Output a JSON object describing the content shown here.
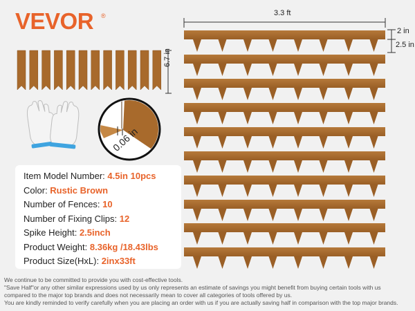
{
  "brand": {
    "name": "VEVOR",
    "reg": "®"
  },
  "colors": {
    "accent": "#e8632a",
    "wood": "#a86a2c",
    "wood_light": "#c58845",
    "background": "#f1f1f1"
  },
  "dimensions": {
    "length": "3.3 ft",
    "height": "2 in",
    "spike": "2.5 in",
    "clip_length": "6.7 in",
    "thickness": "0.06 in"
  },
  "specs": [
    {
      "label": "Item Model Number: ",
      "value": "4.5in 10pcs"
    },
    {
      "label": "Color: ",
      "value": "Rustic Brown"
    },
    {
      "label": "Number of Fences: ",
      "value": "10"
    },
    {
      "label": "Number of Fixing Clips: ",
      "value": "12"
    },
    {
      "label": "Spike Height: ",
      "value": "2.5inch"
    },
    {
      "label": "Product Weight: ",
      "value": "8.36kg /18.43lbs"
    },
    {
      "label": "Product Size(HxL): ",
      "value": "2inx33ft"
    }
  ],
  "disclaimer": [
    "We continue to be committed to provide you with cost-effective tools.",
    "\"Save Half\"or any other similar expressions used by us only represents an estimate of savings you might benefit from buying certain tools with us",
    "compared to the major top brands and does not necessarily mean to cover all categories of tools offered by us.",
    "You are kindly reminded to verify carefully when you are placing an order with us if you are actually saving half in comparison with the top major brands."
  ],
  "icons": [
    "gloves-icon",
    "thickness-magnifier-icon"
  ]
}
